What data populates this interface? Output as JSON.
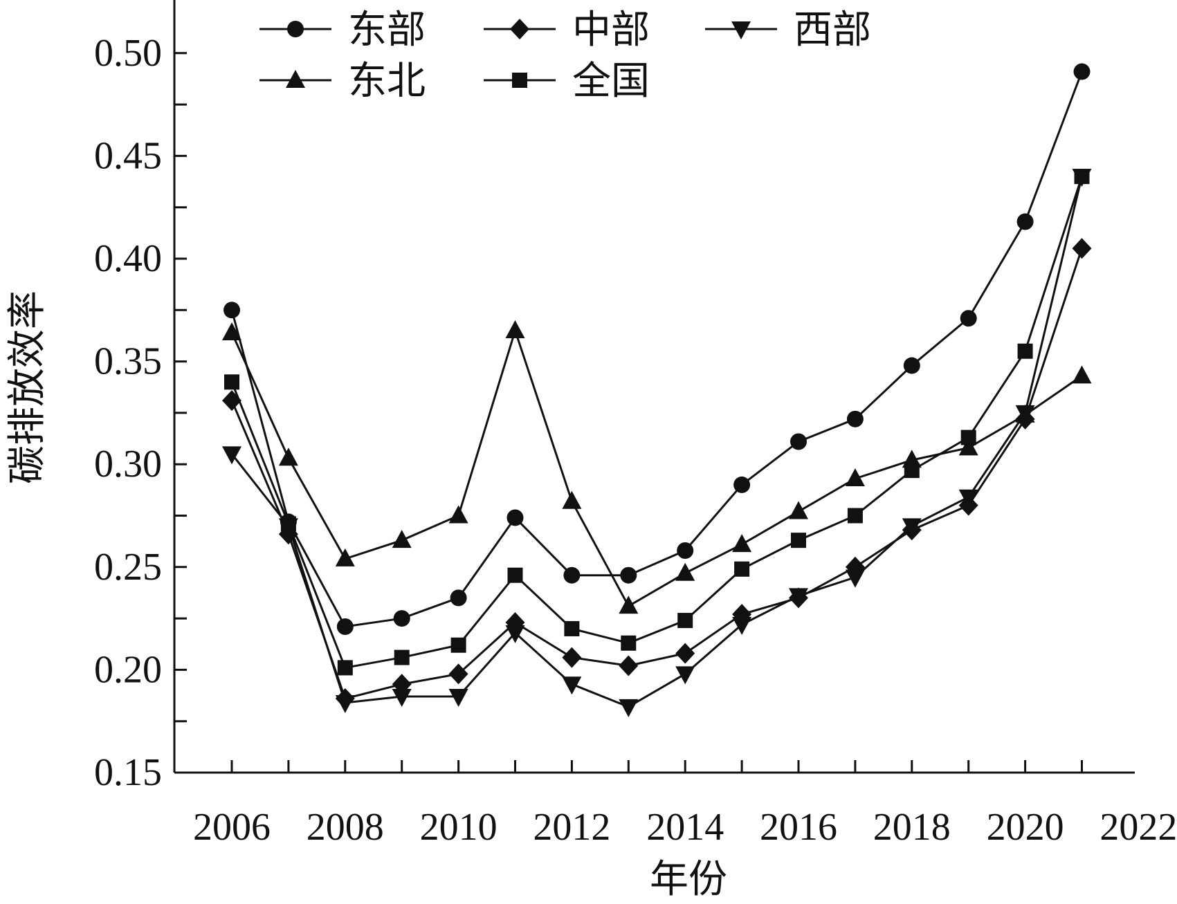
{
  "chart_data": {
    "type": "line",
    "xlabel": "年份",
    "ylabel": "碳排放效率",
    "xlim": [
      2005,
      2022
    ],
    "ylim": [
      0.15,
      0.51
    ],
    "x_ticks": [
      2006,
      2008,
      2010,
      2012,
      2014,
      2016,
      2018,
      2020,
      2022
    ],
    "y_ticks": [
      0.15,
      0.2,
      0.25,
      0.3,
      0.35,
      0.4,
      0.45,
      0.5
    ],
    "y_tick_labels": [
      "0.15",
      "0.20",
      "0.25",
      "0.30",
      "0.35",
      "0.40",
      "0.45",
      "0.50"
    ],
    "legend_position": "top",
    "x": [
      2006,
      2007,
      2008,
      2009,
      2010,
      2011,
      2012,
      2013,
      2014,
      2015,
      2016,
      2017,
      2018,
      2019,
      2020,
      2021
    ],
    "series": [
      {
        "name": "东部",
        "marker": "circle",
        "values": [
          0.375,
          0.272,
          0.221,
          0.225,
          0.235,
          0.274,
          0.246,
          0.246,
          0.258,
          0.29,
          0.311,
          0.322,
          0.348,
          0.371,
          0.418,
          0.491
        ]
      },
      {
        "name": "中部",
        "marker": "diamond",
        "values": [
          0.331,
          0.266,
          0.186,
          0.193,
          0.198,
          0.223,
          0.206,
          0.202,
          0.208,
          0.227,
          0.235,
          0.25,
          0.268,
          0.28,
          0.322,
          0.405
        ]
      },
      {
        "name": "西部",
        "marker": "triangle-down",
        "values": [
          0.305,
          0.27,
          0.184,
          0.187,
          0.187,
          0.218,
          0.193,
          0.182,
          0.198,
          0.222,
          0.236,
          0.245,
          0.27,
          0.284,
          0.325,
          0.44
        ]
      },
      {
        "name": "东北",
        "marker": "triangle-up",
        "values": [
          0.364,
          0.303,
          0.254,
          0.263,
          0.275,
          0.365,
          0.282,
          0.231,
          0.247,
          0.261,
          0.277,
          0.293,
          0.302,
          0.308,
          0.324,
          0.343
        ]
      },
      {
        "name": "全国",
        "marker": "square",
        "values": [
          0.34,
          0.271,
          0.201,
          0.206,
          0.212,
          0.246,
          0.22,
          0.213,
          0.224,
          0.249,
          0.263,
          0.275,
          0.297,
          0.313,
          0.355,
          0.44
        ]
      }
    ]
  }
}
